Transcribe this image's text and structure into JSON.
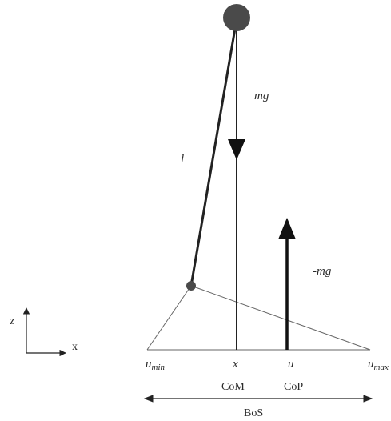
{
  "labels": {
    "gravity": "mg",
    "reaction": "-mg",
    "length": "l",
    "axis_z": "z",
    "axis_x": "x",
    "u_min_base": "u",
    "u_min_sub": "min",
    "u_max_base": "u",
    "u_max_sub": "max",
    "x_pos": "x",
    "u_pos": "u",
    "com": "CoM",
    "cop": "CoP",
    "bos": "BoS"
  },
  "colors": {
    "mass": "#4a4a4a",
    "line": "#222222",
    "thin_line": "#555555"
  }
}
